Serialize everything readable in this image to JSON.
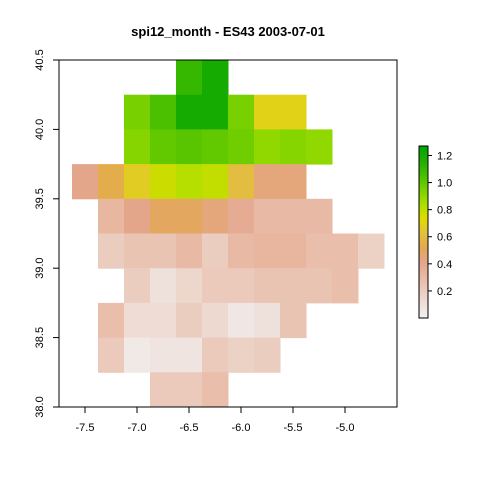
{
  "chart_data": {
    "type": "heatmap",
    "title": "spi12_month - ES43 2003-07-01",
    "xlabel": "",
    "ylabel": "",
    "x_cell_centers": [
      -7.5,
      -7.25,
      -7.0,
      -6.75,
      -6.5,
      -6.25,
      -6.0,
      -5.75,
      -5.5,
      -5.25,
      -5.0,
      -4.75
    ],
    "y_cell_centers": [
      40.375,
      40.125,
      39.875,
      39.625,
      39.375,
      39.125,
      38.875,
      38.625,
      38.375,
      38.125
    ],
    "cell_width": 0.25,
    "cell_height": 0.25,
    "xlim": [
      -7.75,
      -4.5
    ],
    "ylim": [
      38.0,
      40.5
    ],
    "x_ticks": [
      -7.5,
      -7.0,
      -6.5,
      -6.0,
      -5.5,
      -5.0
    ],
    "x_tick_labels": [
      "-7.5",
      "-7.0",
      "-6.5",
      "-6.0",
      "-5.5",
      "-5.0"
    ],
    "y_ticks": [
      38.0,
      38.5,
      39.0,
      39.5,
      40.0,
      40.5
    ],
    "y_tick_labels": [
      "38.0",
      "38.5",
      "39.0",
      "39.5",
      "40.0",
      "40.5"
    ],
    "values": [
      [
        null,
        null,
        null,
        null,
        1.1,
        1.2,
        null,
        null,
        null,
        null,
        null,
        null
      ],
      [
        null,
        null,
        0.95,
        1.05,
        1.2,
        1.2,
        0.95,
        0.7,
        0.7,
        null,
        null,
        null
      ],
      [
        null,
        null,
        0.92,
        1.0,
        1.02,
        1.0,
        0.97,
        0.9,
        0.92,
        0.9,
        null,
        null
      ],
      [
        0.42,
        0.55,
        0.68,
        0.78,
        0.82,
        0.8,
        0.62,
        0.45,
        0.45,
        null,
        null,
        null
      ],
      [
        null,
        0.32,
        0.42,
        0.5,
        0.5,
        0.45,
        0.38,
        0.3,
        0.3,
        0.3,
        null,
        null
      ],
      [
        null,
        0.2,
        0.25,
        0.25,
        0.3,
        0.2,
        0.3,
        0.33,
        0.33,
        0.28,
        0.28,
        0.18
      ],
      [
        null,
        null,
        0.2,
        0.1,
        0.15,
        0.22,
        0.22,
        0.25,
        0.25,
        0.25,
        0.28,
        null
      ],
      [
        null,
        0.28,
        0.12,
        0.12,
        0.2,
        0.14,
        0.06,
        0.1,
        0.25,
        null,
        null,
        null
      ],
      [
        null,
        0.22,
        0.05,
        0.08,
        0.08,
        0.22,
        0.18,
        0.2,
        null,
        null,
        null,
        null
      ],
      [
        null,
        null,
        null,
        0.22,
        0.22,
        0.28,
        null,
        null,
        null,
        null,
        null,
        null
      ]
    ],
    "legend": {
      "placement": "right",
      "zlim": [
        0.0,
        1.27
      ],
      "ticks": [
        0.2,
        0.4,
        0.6,
        0.8,
        1.0,
        1.2
      ],
      "tick_labels": [
        "0.2",
        "0.4",
        "0.6",
        "0.8",
        "1.0",
        "1.2"
      ]
    },
    "colors": {
      "palette": [
        "#f2f2f2",
        "#eedfd9",
        "#ebcbbd",
        "#e8b7a1",
        "#e4a58a",
        "#e4a84f",
        "#e2c13d",
        "#e0dc00",
        "#a8e000",
        "#78d000",
        "#46bf00",
        "#1fae00",
        "#00a600"
      ],
      "box": "#000000",
      "background": "#ffffff"
    }
  }
}
